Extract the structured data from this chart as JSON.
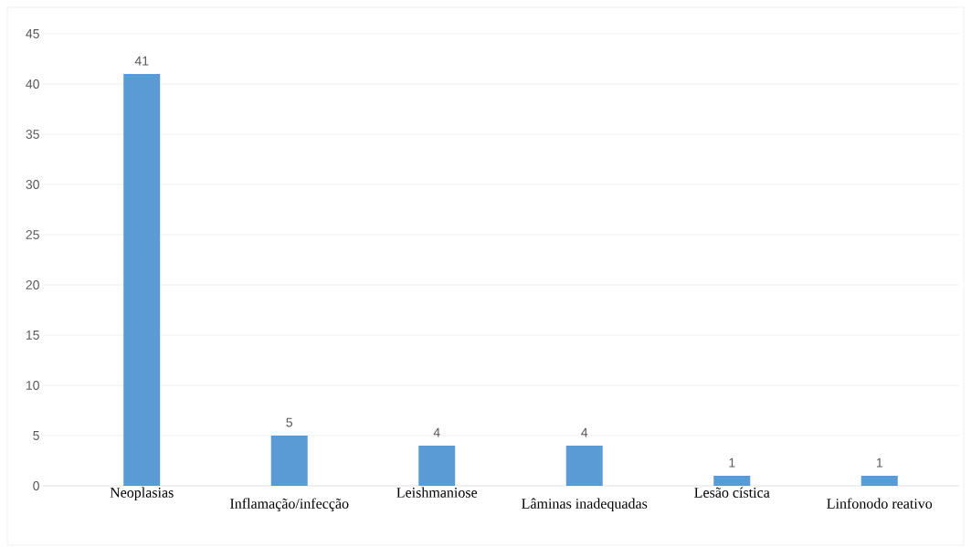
{
  "chart_data": {
    "type": "bar",
    "categories": [
      "Neoplasias",
      "Inflamação/infecção",
      "Leishmaniose",
      "Lâminas inadequadas",
      "Lesão cística",
      "Linfonodo reativo"
    ],
    "values": [
      41,
      5,
      4,
      4,
      1,
      1
    ],
    "color": "#5b9bd5",
    "ylim": [
      0,
      45
    ],
    "yticks": [
      0,
      5,
      10,
      15,
      20,
      25,
      30,
      35,
      40,
      45
    ],
    "grid": "y",
    "data_labels": true
  }
}
